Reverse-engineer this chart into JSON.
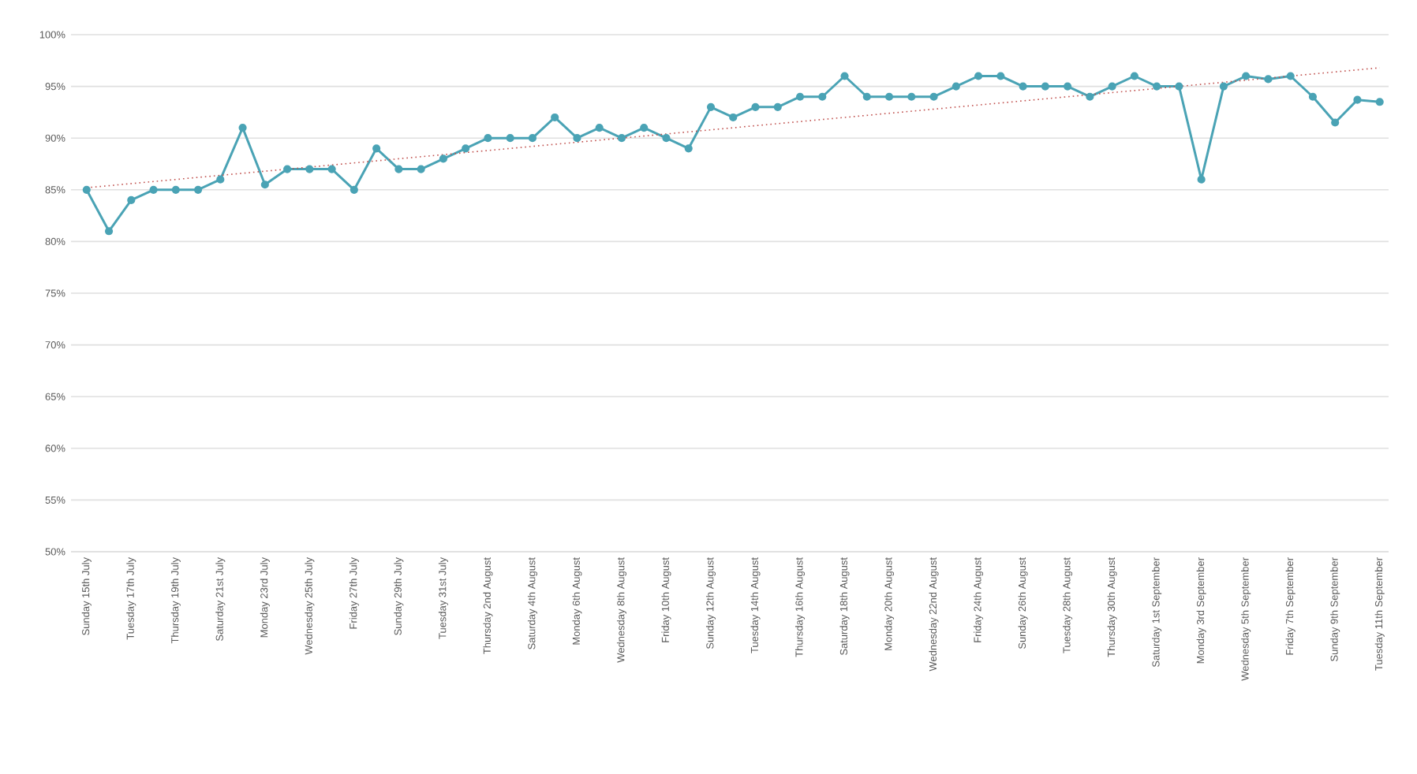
{
  "chart_data": {
    "type": "line",
    "categories": [
      "Sunday 15th July",
      null,
      "Tuesday 17th July",
      null,
      "Thursday 19th July",
      null,
      "Saturday 21st July",
      null,
      "Monday 23rd July",
      null,
      "Wednesday 25th July",
      null,
      "Friday 27th July",
      null,
      "Sunday 29th July",
      null,
      "Tuesday 31st July",
      null,
      "Thursday 2nd August",
      null,
      "Saturday 4th August",
      null,
      "Monday 6th August",
      null,
      "Wednesday 8th August",
      null,
      "Friday 10th August",
      null,
      "Sunday 12th August",
      null,
      "Tuesday 14th August",
      null,
      "Thursday 16th August",
      null,
      "Saturday 18th August",
      null,
      "Monday 20th August",
      null,
      "Wednesday 22nd August",
      null,
      "Friday 24th August",
      null,
      "Sunday 26th August",
      null,
      "Tuesday 28th August",
      null,
      "Thursday 30th August",
      null,
      "Saturday 1st September",
      null,
      "Monday 3rd September",
      null,
      "Wednesday 5th September",
      null,
      "Friday 7th September",
      null,
      "Sunday 9th September",
      null,
      "Tuesday 11th September"
    ],
    "series": [
      {
        "color": "#4aa3b5",
        "marker": "circle",
        "line_style": "solid",
        "values": [
          85,
          81,
          84,
          85,
          85,
          85,
          86,
          91,
          85.5,
          87,
          87,
          87,
          85,
          89,
          87,
          87,
          88,
          89,
          90,
          90,
          90,
          92,
          90,
          91,
          90,
          91,
          90,
          89,
          93,
          92,
          93,
          93,
          94,
          94,
          96,
          94,
          94,
          94,
          94,
          95,
          96,
          96,
          95,
          95,
          95,
          94,
          95,
          96,
          95,
          95,
          86,
          95,
          96,
          95.7,
          96,
          94,
          91.5,
          93.7,
          93.5
        ]
      },
      {
        "color": "#c0504d",
        "marker": "none",
        "line_style": "dotted",
        "values": [
          85.2,
          null,
          null,
          null,
          null,
          null,
          null,
          null,
          null,
          null,
          null,
          null,
          null,
          null,
          null,
          null,
          null,
          null,
          null,
          null,
          null,
          null,
          null,
          null,
          null,
          null,
          null,
          null,
          null,
          null,
          null,
          null,
          null,
          null,
          null,
          null,
          null,
          null,
          null,
          null,
          null,
          null,
          null,
          null,
          null,
          null,
          null,
          null,
          null,
          null,
          null,
          null,
          null,
          null,
          null,
          null,
          null,
          null,
          96.8
        ]
      }
    ],
    "ylim": [
      50,
      100
    ],
    "yticks": [
      {
        "value": 50,
        "label": "50%"
      },
      {
        "value": 55,
        "label": "55%"
      },
      {
        "value": 60,
        "label": "60%"
      },
      {
        "value": 65,
        "label": "65%"
      },
      {
        "value": 70,
        "label": "70%"
      },
      {
        "value": 75,
        "label": "75%"
      },
      {
        "value": 80,
        "label": "80%"
      },
      {
        "value": 85,
        "label": "85%"
      },
      {
        "value": 90,
        "label": "90%"
      },
      {
        "value": 95,
        "label": "95%"
      },
      {
        "value": 100,
        "label": "100%"
      }
    ],
    "grid": "y"
  }
}
